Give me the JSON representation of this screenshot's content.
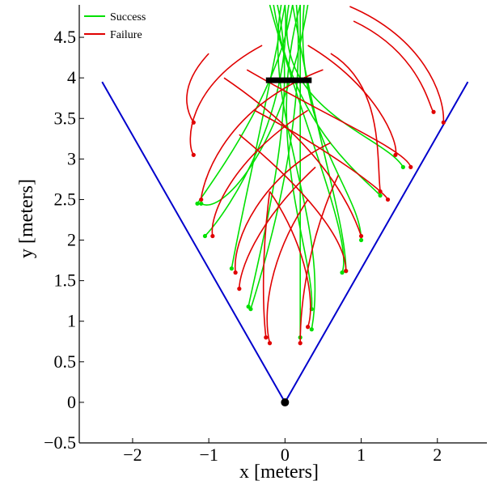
{
  "chart_data": {
    "type": "line",
    "xlabel": "x [meters]",
    "ylabel": "y [meters]",
    "xlim": [
      -2.7,
      2.65
    ],
    "ylim": [
      -0.5,
      4.9
    ],
    "x_ticks": [
      -2,
      -1,
      0,
      1,
      2
    ],
    "x_tick_labels": [
      "−2",
      "−1",
      "0",
      "1",
      "2"
    ],
    "y_ticks": [
      -0.5,
      0,
      0.5,
      1,
      1.5,
      2,
      2.5,
      3,
      3.5,
      4,
      4.5
    ],
    "y_tick_labels": [
      "−0.5",
      "0",
      "0.5",
      "1",
      "1.5",
      "2",
      "2.5",
      "3",
      "3.5",
      "4",
      "4.5"
    ],
    "grid": false,
    "legend_position": "top-left",
    "legend": [
      {
        "name": "Success",
        "color": "#00e000"
      },
      {
        "name": "Failure",
        "color": "#e00000"
      }
    ],
    "cone": {
      "color": "#0000cc",
      "points": [
        [
          -2.4,
          3.95
        ],
        [
          0,
          0
        ],
        [
          2.4,
          3.95
        ]
      ]
    },
    "origin_marker": {
      "x": 0,
      "y": 0,
      "color": "#000000"
    },
    "target_bar": {
      "x_start": -0.25,
      "x_end": 0.35,
      "y": 3.97,
      "color": "#000000"
    },
    "series": [
      {
        "name": "Success",
        "color": "#00e000",
        "trajectories": [
          {
            "start": [
              0.1,
              4.9
            ],
            "c1": [
              -0.1,
              3.8
            ],
            "c2": [
              -0.9,
              2.8
            ],
            "end": [
              -1.15,
              2.45
            ]
          },
          {
            "start": [
              0.0,
              4.9
            ],
            "c1": [
              0.1,
              3.6
            ],
            "c2": [
              -0.7,
              2.4
            ],
            "end": [
              -1.05,
              2.05
            ]
          },
          {
            "start": [
              -0.1,
              4.9
            ],
            "c1": [
              0.2,
              3.7
            ],
            "c2": [
              -0.3,
              2.0
            ],
            "end": [
              -0.48,
              1.18
            ]
          },
          {
            "start": [
              0.2,
              4.9
            ],
            "c1": [
              -0.3,
              3.2
            ],
            "c2": [
              0.4,
              1.8
            ],
            "end": [
              0.35,
              1.15
            ]
          },
          {
            "start": [
              0.25,
              4.9
            ],
            "c1": [
              0.1,
              3.3
            ],
            "c2": [
              1.0,
              2.6
            ],
            "end": [
              1.0,
              2.0
            ]
          },
          {
            "start": [
              0.05,
              4.9
            ],
            "c1": [
              -0.2,
              3.6
            ],
            "c2": [
              1.3,
              3.3
            ],
            "end": [
              1.55,
              2.9
            ]
          },
          {
            "start": [
              -0.2,
              4.9
            ],
            "c1": [
              0.2,
              3.5
            ],
            "c2": [
              0.9,
              2.0
            ],
            "end": [
              0.75,
              1.6
            ]
          },
          {
            "start": [
              0.15,
              4.9
            ],
            "c1": [
              0.3,
              3.4
            ],
            "c2": [
              -0.3,
              1.6
            ],
            "end": [
              -0.45,
              1.15
            ]
          },
          {
            "start": [
              -0.05,
              4.9
            ],
            "c1": [
              -0.3,
              3.6
            ],
            "c2": [
              0.6,
              2.2
            ],
            "end": [
              0.35,
              0.9
            ]
          },
          {
            "start": [
              0.3,
              4.9
            ],
            "c1": [
              0.0,
              3.2
            ],
            "c2": [
              -0.8,
              2.3
            ],
            "end": [
              -1.1,
              2.45
            ]
          },
          {
            "start": [
              -0.15,
              4.9
            ],
            "c1": [
              0.1,
              3.4
            ],
            "c2": [
              1.0,
              2.8
            ],
            "end": [
              1.25,
              2.55
            ]
          },
          {
            "start": [
              0.2,
              4.9
            ],
            "c1": [
              0.2,
              3.5
            ],
            "c2": [
              0.2,
              2.0
            ],
            "end": [
              0.2,
              0.8
            ]
          },
          {
            "start": [
              0.0,
              4.9
            ],
            "c1": [
              -0.3,
              3.4
            ],
            "c2": [
              -0.6,
              2.2
            ],
            "end": [
              -0.7,
              1.65
            ]
          },
          {
            "start": [
              0.1,
              4.9
            ],
            "c1": [
              0.4,
              3.3
            ],
            "c2": [
              0.8,
              2.2
            ],
            "end": [
              0.8,
              1.62
            ]
          }
        ]
      },
      {
        "name": "Failure",
        "color": "#e00000",
        "trajectories": [
          {
            "start": [
              -1.0,
              4.3
            ],
            "c1": [
              -1.4,
              3.9
            ],
            "c2": [
              -1.3,
              3.6
            ],
            "end": [
              -1.2,
              3.45
            ]
          },
          {
            "start": [
              -0.3,
              4.4
            ],
            "c1": [
              -1.3,
              3.9
            ],
            "c2": [
              -1.3,
              3.2
            ],
            "end": [
              -1.2,
              3.05
            ]
          },
          {
            "start": [
              0.5,
              4.1
            ],
            "c1": [
              -0.9,
              3.6
            ],
            "c2": [
              -1.1,
              2.6
            ],
            "end": [
              -1.1,
              2.5
            ]
          },
          {
            "start": [
              0.3,
              3.6
            ],
            "c1": [
              -0.7,
              3.0
            ],
            "c2": [
              -1.0,
              2.3
            ],
            "end": [
              -0.95,
              2.05
            ]
          },
          {
            "start": [
              0.6,
              3.2
            ],
            "c1": [
              -0.3,
              2.8
            ],
            "c2": [
              -0.7,
              2.0
            ],
            "end": [
              -0.65,
              1.6
            ]
          },
          {
            "start": [
              0.4,
              2.9
            ],
            "c1": [
              -0.4,
              2.2
            ],
            "c2": [
              -0.6,
              1.6
            ],
            "end": [
              -0.6,
              1.4
            ]
          },
          {
            "start": [
              -0.2,
              2.6
            ],
            "c1": [
              -0.3,
              1.9
            ],
            "c2": [
              -0.3,
              1.2
            ],
            "end": [
              -0.25,
              0.8
            ]
          },
          {
            "start": [
              0.3,
              2.5
            ],
            "c1": [
              -0.2,
              1.8
            ],
            "c2": [
              -0.3,
              1.1
            ],
            "end": [
              -0.2,
              0.73
            ]
          },
          {
            "start": [
              0.7,
              2.8
            ],
            "c1": [
              0.3,
              2.0
            ],
            "c2": [
              0.2,
              1.2
            ],
            "end": [
              0.2,
              0.73
            ]
          },
          {
            "start": [
              -0.2,
              2.6
            ],
            "c1": [
              0.3,
              1.9
            ],
            "c2": [
              0.4,
              1.2
            ],
            "end": [
              0.3,
              0.93
            ]
          },
          {
            "start": [
              -0.6,
              3.3
            ],
            "c1": [
              0.3,
              2.6
            ],
            "c2": [
              0.8,
              2.0
            ],
            "end": [
              0.8,
              1.62
            ]
          },
          {
            "start": [
              -0.4,
              3.6
            ],
            "c1": [
              0.6,
              3.1
            ],
            "c2": [
              1.3,
              2.6
            ],
            "end": [
              1.35,
              2.5
            ]
          },
          {
            "start": [
              0.3,
              4.4
            ],
            "c1": [
              1.2,
              3.9
            ],
            "c2": [
              1.5,
              3.2
            ],
            "end": [
              1.45,
              3.05
            ]
          },
          {
            "start": [
              0.9,
              4.7
            ],
            "c1": [
              1.8,
              4.3
            ],
            "c2": [
              1.9,
              3.6
            ],
            "end": [
              1.95,
              3.58
            ]
          },
          {
            "start": [
              0.85,
              4.88
            ],
            "c1": [
              1.8,
              4.5
            ],
            "c2": [
              2.1,
              3.8
            ],
            "end": [
              2.08,
              3.45
            ]
          },
          {
            "start": [
              0.6,
              4.3
            ],
            "c1": [
              1.3,
              3.9
            ],
            "c2": [
              1.2,
              3.0
            ],
            "end": [
              1.25,
              2.6
            ]
          },
          {
            "start": [
              -0.5,
              4.1
            ],
            "c1": [
              0.6,
              3.5
            ],
            "c2": [
              1.6,
              3.1
            ],
            "end": [
              1.65,
              2.9
            ]
          },
          {
            "start": [
              -0.8,
              4.0
            ],
            "c1": [
              0.3,
              3.3
            ],
            "c2": [
              0.8,
              2.6
            ],
            "end": [
              1.0,
              2.05
            ]
          }
        ]
      }
    ]
  }
}
